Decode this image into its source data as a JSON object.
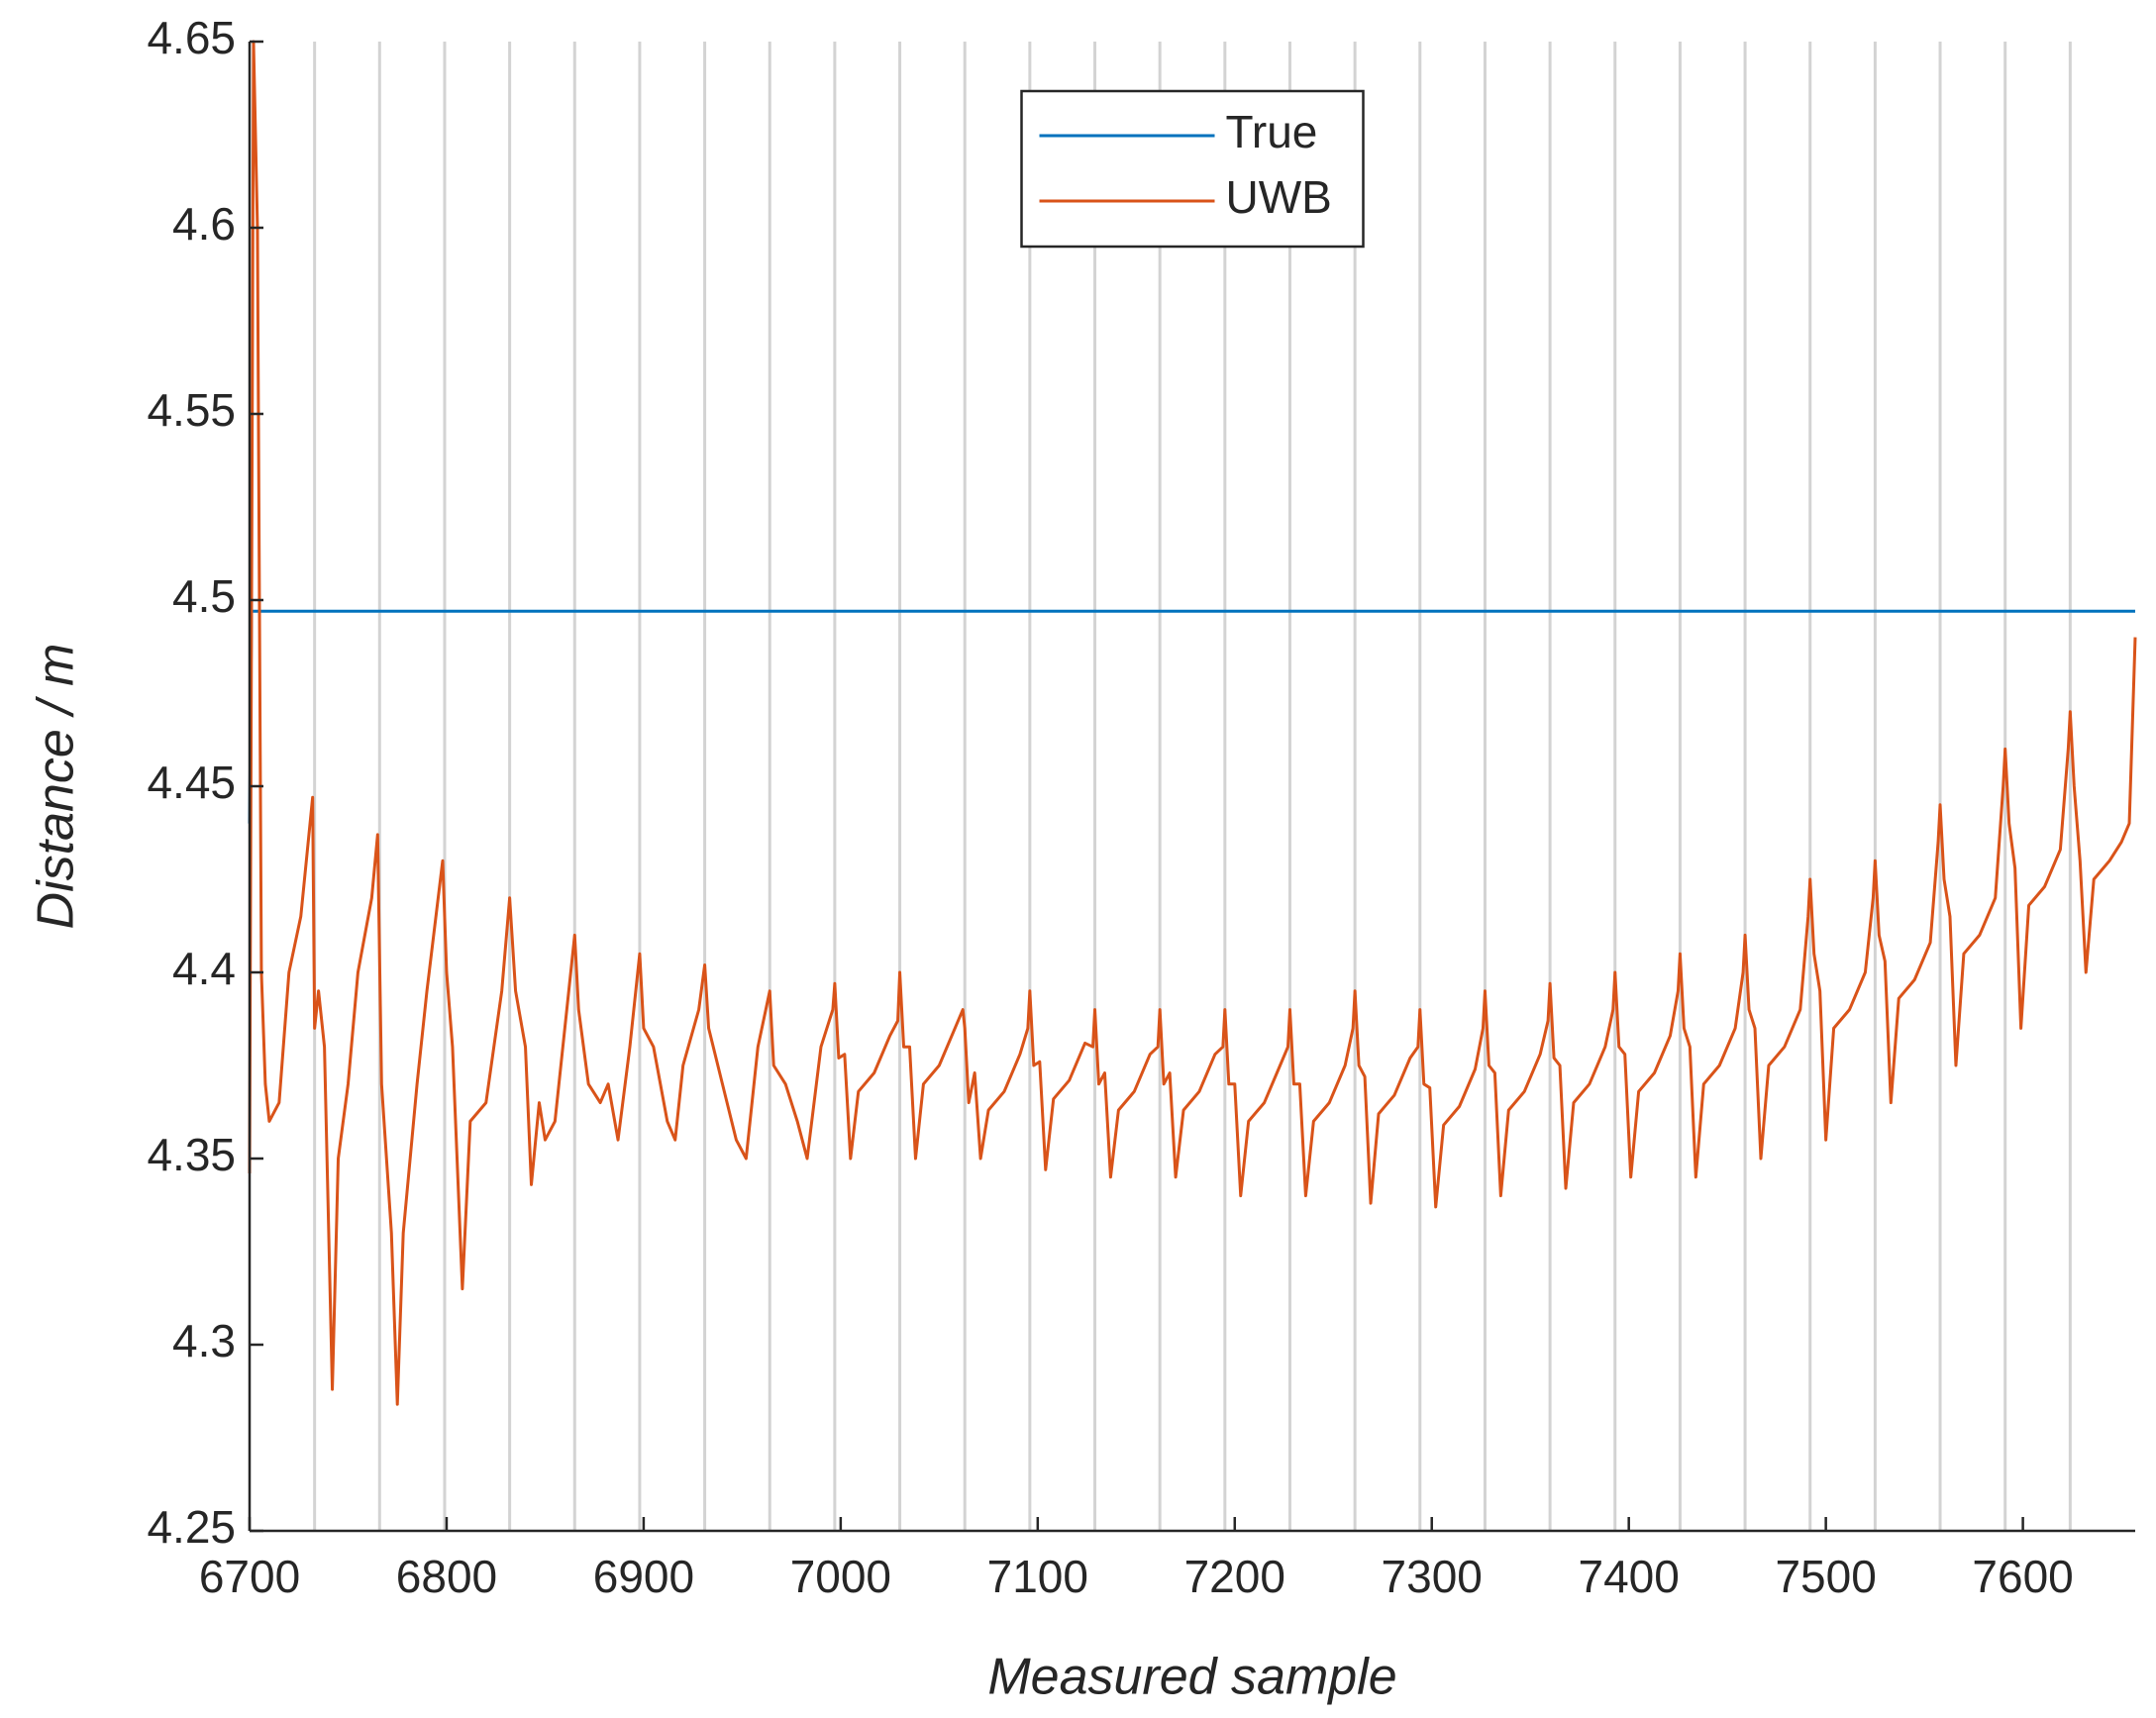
{
  "chart_data": {
    "type": "line",
    "xlabel": "Measured sample",
    "ylabel": "Distance / m",
    "xlim": [
      6700,
      7657
    ],
    "ylim": [
      4.25,
      4.65
    ],
    "xticks": [
      6700,
      6800,
      6900,
      7000,
      7100,
      7200,
      7300,
      7400,
      7500,
      7600
    ],
    "yticks": [
      4.25,
      4.3,
      4.35,
      4.4,
      4.45,
      4.5,
      4.55,
      4.6,
      4.65
    ],
    "legend": "north",
    "vertical_lines": {
      "color": "#d3d3d3",
      "x": [
        6733,
        6766,
        6799,
        6832,
        6865,
        6898,
        6931,
        6964,
        6997,
        7030,
        7063,
        7096,
        7129,
        7162,
        7195,
        7228,
        7261,
        7294,
        7327,
        7360,
        7393,
        7426,
        7459,
        7492,
        7525,
        7558,
        7591,
        7624
      ]
    },
    "series": [
      {
        "name": "True",
        "color": "#0072BD",
        "x": [
          6700,
          6701,
          7657
        ],
        "values": [
          4.44,
          4.497,
          4.497
        ]
      },
      {
        "name": "UWB",
        "color": "#D95319",
        "x": [
          6700,
          6702,
          6704,
          6706,
          6708,
          6710,
          6715,
          6720,
          6726,
          6732,
          6733,
          6735,
          6738,
          6742,
          6745,
          6750,
          6755,
          6762,
          6765,
          6767,
          6772,
          6775,
          6778,
          6785,
          6790,
          6798,
          6800,
          6803,
          6808,
          6812,
          6820,
          6828,
          6832,
          6835,
          6840,
          6843,
          6847,
          6850,
          6855,
          6860,
          6865,
          6867,
          6872,
          6878,
          6882,
          6887,
          6893,
          6898,
          6900,
          6905,
          6912,
          6916,
          6920,
          6928,
          6931,
          6933,
          6940,
          6947,
          6952,
          6958,
          6964,
          6966,
          6972,
          6978,
          6983,
          6990,
          6996,
          6997,
          6999,
          7002,
          7005,
          7009,
          7017,
          7025,
          7029,
          7030,
          7032,
          7035,
          7038,
          7042,
          7050,
          7058,
          7062,
          7063,
          7065,
          7068,
          7071,
          7075,
          7083,
          7091,
          7095,
          7096,
          7098,
          7101,
          7104,
          7108,
          7116,
          7124,
          7128,
          7129,
          7131,
          7134,
          7137,
          7141,
          7149,
          7157,
          7161,
          7162,
          7164,
          7167,
          7170,
          7174,
          7182,
          7190,
          7194,
          7195,
          7197,
          7200,
          7203,
          7207,
          7215,
          7223,
          7227,
          7228,
          7230,
          7233,
          7236,
          7240,
          7248,
          7256,
          7260,
          7261,
          7263,
          7266,
          7269,
          7273,
          7281,
          7289,
          7293,
          7294,
          7296,
          7299,
          7302,
          7306,
          7314,
          7322,
          7326,
          7327,
          7329,
          7332,
          7335,
          7339,
          7347,
          7355,
          7359,
          7360,
          7362,
          7365,
          7368,
          7372,
          7380,
          7388,
          7392,
          7393,
          7395,
          7398,
          7401,
          7405,
          7413,
          7421,
          7425,
          7426,
          7428,
          7431,
          7434,
          7438,
          7446,
          7454,
          7458,
          7459,
          7461,
          7464,
          7467,
          7471,
          7479,
          7487,
          7491,
          7492,
          7494,
          7497,
          7500,
          7504,
          7512,
          7520,
          7524,
          7525,
          7527,
          7530,
          7533,
          7537,
          7545,
          7553,
          7557,
          7558,
          7560,
          7563,
          7566,
          7570,
          7578,
          7586,
          7590,
          7591,
          7593,
          7596,
          7599,
          7603,
          7611,
          7619,
          7623,
          7624,
          7626,
          7629,
          7632,
          7636,
          7644,
          7650,
          7654,
          7657
        ],
        "values": [
          4.346,
          4.65,
          4.6,
          4.4,
          4.37,
          4.36,
          4.365,
          4.4,
          4.415,
          4.447,
          4.385,
          4.395,
          4.38,
          4.288,
          4.35,
          4.37,
          4.4,
          4.42,
          4.437,
          4.37,
          4.33,
          4.284,
          4.33,
          4.37,
          4.395,
          4.43,
          4.4,
          4.38,
          4.315,
          4.36,
          4.365,
          4.395,
          4.42,
          4.395,
          4.38,
          4.343,
          4.365,
          4.355,
          4.36,
          4.385,
          4.41,
          4.39,
          4.37,
          4.365,
          4.37,
          4.355,
          4.38,
          4.405,
          4.385,
          4.38,
          4.36,
          4.355,
          4.375,
          4.39,
          4.402,
          4.385,
          4.37,
          4.355,
          4.35,
          4.38,
          4.395,
          4.375,
          4.37,
          4.36,
          4.35,
          4.38,
          4.39,
          4.397,
          4.377,
          4.378,
          4.35,
          4.368,
          4.373,
          4.383,
          4.387,
          4.4,
          4.38,
          4.38,
          4.35,
          4.37,
          4.375,
          4.385,
          4.39,
          4.385,
          4.365,
          4.373,
          4.35,
          4.363,
          4.368,
          4.378,
          4.385,
          4.395,
          4.375,
          4.376,
          4.347,
          4.366,
          4.371,
          4.381,
          4.38,
          4.39,
          4.37,
          4.373,
          4.345,
          4.363,
          4.368,
          4.378,
          4.38,
          4.39,
          4.37,
          4.373,
          4.345,
          4.363,
          4.368,
          4.378,
          4.38,
          4.39,
          4.37,
          4.37,
          4.34,
          4.36,
          4.365,
          4.375,
          4.38,
          4.39,
          4.37,
          4.37,
          4.34,
          4.36,
          4.365,
          4.375,
          4.385,
          4.395,
          4.375,
          4.372,
          4.338,
          4.362,
          4.367,
          4.377,
          4.38,
          4.39,
          4.37,
          4.369,
          4.337,
          4.359,
          4.364,
          4.374,
          4.385,
          4.395,
          4.375,
          4.373,
          4.34,
          4.363,
          4.368,
          4.378,
          4.387,
          4.397,
          4.377,
          4.375,
          4.342,
          4.365,
          4.37,
          4.38,
          4.39,
          4.4,
          4.38,
          4.378,
          4.345,
          4.368,
          4.373,
          4.383,
          4.395,
          4.405,
          4.385,
          4.38,
          4.345,
          4.37,
          4.375,
          4.385,
          4.4,
          4.41,
          4.39,
          4.385,
          4.35,
          4.375,
          4.38,
          4.39,
          4.415,
          4.425,
          4.405,
          4.395,
          4.355,
          4.385,
          4.39,
          4.4,
          4.42,
          4.43,
          4.41,
          4.403,
          4.365,
          4.393,
          4.398,
          4.408,
          4.435,
          4.445,
          4.425,
          4.415,
          4.375,
          4.405,
          4.41,
          4.42,
          4.45,
          4.46,
          4.44,
          4.428,
          4.385,
          4.418,
          4.423,
          4.433,
          4.46,
          4.47,
          4.45,
          4.43,
          4.4,
          4.425,
          4.43,
          4.435,
          4.44,
          4.49
        ]
      }
    ]
  }
}
